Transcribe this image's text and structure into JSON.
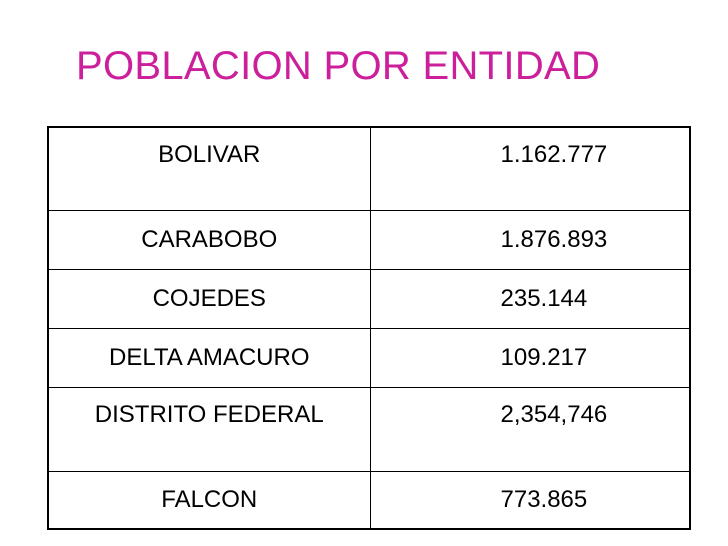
{
  "title": "POBLACION POR ENTIDAD",
  "table": {
    "rows": [
      {
        "entity": "BOLIVAR",
        "population": "1.162.777"
      },
      {
        "entity": "CARABOBO",
        "population": "1.876.893"
      },
      {
        "entity": "COJEDES",
        "population": "235.144"
      },
      {
        "entity": "DELTA AMACURO",
        "population": "109.217"
      },
      {
        "entity": "DISTRITO FEDERAL",
        "population": "2,354,746"
      },
      {
        "entity": "FALCON",
        "population": "773.865"
      }
    ]
  },
  "colors": {
    "title": "#cc1f9b",
    "text": "#000000",
    "border": "#000000",
    "background": "#ffffff"
  }
}
